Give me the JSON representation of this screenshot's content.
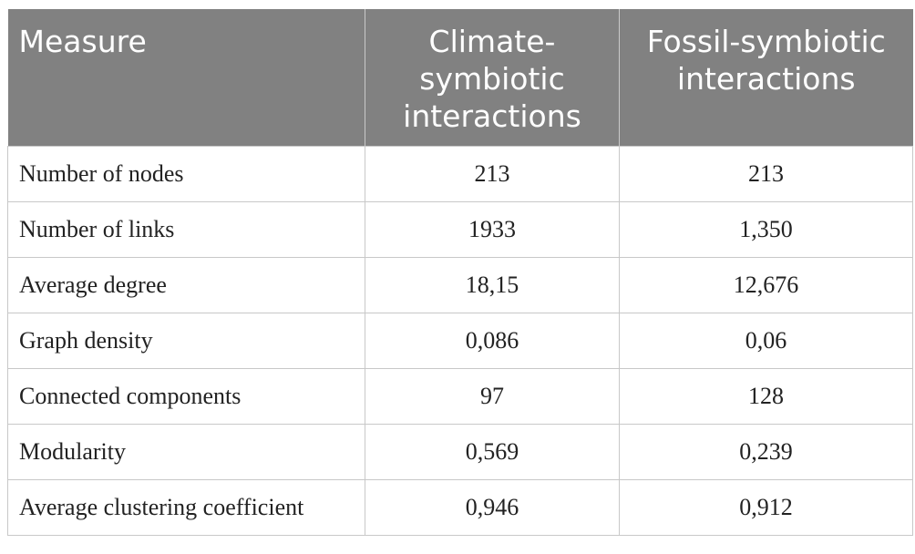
{
  "table": {
    "headers": [
      "Measure",
      "Climate-symbiotic interactions",
      "Fossil-symbiotic interactions"
    ],
    "rows": [
      [
        "Number of nodes",
        "213",
        "213"
      ],
      [
        "Number of links",
        "1933",
        "1,350"
      ],
      [
        "Average degree",
        "18,15",
        "12,676"
      ],
      [
        "Graph density",
        "0,086",
        "0,06"
      ],
      [
        "Connected components",
        "97",
        "128"
      ],
      [
        "Modularity",
        "0,569",
        "0,239"
      ],
      [
        "Average clustering coefficient",
        "0,946",
        "0,912"
      ]
    ]
  },
  "colors": {
    "header_bg": "#818181",
    "header_text": "#ffffff",
    "border": "#c8c8c8"
  }
}
